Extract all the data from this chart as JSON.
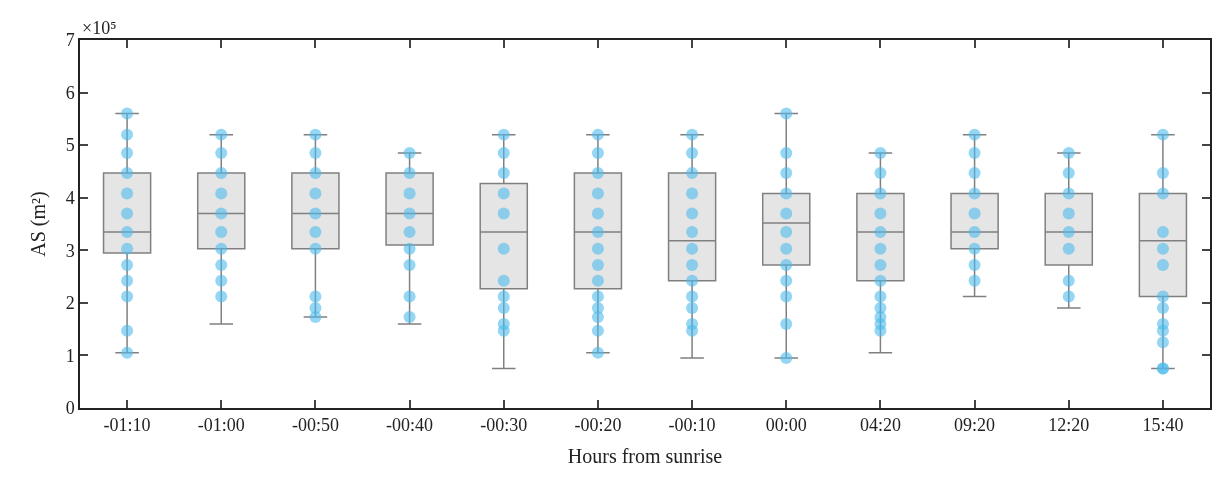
{
  "chart_data": {
    "type": "box",
    "xlabel": "Hours from sunrise",
    "ylabel": "AS (m²)",
    "categories": [
      "-01:10",
      "-01:00",
      "-00:50",
      "-00:40",
      "-00:30",
      "-00:20",
      "-00:10",
      "00:00",
      "04:20",
      "09:20",
      "12:20",
      "15:40"
    ],
    "ylim": [
      0,
      7
    ],
    "yticks": [
      0,
      1,
      2,
      3,
      4,
      5,
      6,
      7
    ],
    "annotations": [
      "×10⁵"
    ],
    "series": [
      {
        "color": "#808080",
        "boxes": [
          {
            "low": 1.05,
            "q1": 2.95,
            "median": 3.35,
            "q3": 4.47,
            "high": 5.6
          },
          {
            "low": 1.6,
            "q1": 3.03,
            "median": 3.7,
            "q3": 4.47,
            "high": 5.2
          },
          {
            "low": 1.73,
            "q1": 3.03,
            "median": 3.7,
            "q3": 4.47,
            "high": 5.2
          },
          {
            "low": 1.6,
            "q1": 3.1,
            "median": 3.7,
            "q3": 4.47,
            "high": 4.85
          },
          {
            "low": 0.75,
            "q1": 2.27,
            "median": 3.35,
            "q3": 4.27,
            "high": 5.2
          },
          {
            "low": 1.05,
            "q1": 2.27,
            "median": 3.35,
            "q3": 4.47,
            "high": 5.2
          },
          {
            "low": 0.95,
            "q1": 2.42,
            "median": 3.18,
            "q3": 4.47,
            "high": 5.2
          },
          {
            "low": 0.95,
            "q1": 2.72,
            "median": 3.52,
            "q3": 4.08,
            "high": 5.6
          },
          {
            "low": 1.05,
            "q1": 2.42,
            "median": 3.35,
            "q3": 4.08,
            "high": 4.85
          },
          {
            "low": 2.12,
            "q1": 3.03,
            "median": 3.35,
            "q3": 4.08,
            "high": 5.2
          },
          {
            "low": 1.9,
            "q1": 2.72,
            "median": 3.35,
            "q3": 4.08,
            "high": 4.85
          },
          {
            "low": 0.75,
            "q1": 2.12,
            "median": 3.18,
            "q3": 4.08,
            "high": 5.2
          }
        ]
      },
      {
        "type": "scatter",
        "color": "#4dbbeb",
        "marker": "circle",
        "x": [
          "-01:10",
          "-01:10",
          "-01:10",
          "-01:10",
          "-01:10",
          "-01:10",
          "-01:10",
          "-01:10",
          "-01:10",
          "-01:10",
          "-01:10",
          "-01:10",
          "-01:10",
          "-01:00",
          "-01:00",
          "-01:00",
          "-01:00",
          "-01:00",
          "-01:00",
          "-01:00",
          "-01:00",
          "-01:00",
          "-01:00",
          "-00:50",
          "-00:50",
          "-00:50",
          "-00:50",
          "-00:50",
          "-00:50",
          "-00:50",
          "-00:50",
          "-00:50",
          "-00:50",
          "-00:40",
          "-00:40",
          "-00:40",
          "-00:40",
          "-00:40",
          "-00:40",
          "-00:40",
          "-00:40",
          "-00:40",
          "-00:30",
          "-00:30",
          "-00:30",
          "-00:30",
          "-00:30",
          "-00:30",
          "-00:30",
          "-00:30",
          "-00:30",
          "-00:30",
          "-00:30",
          "-00:20",
          "-00:20",
          "-00:20",
          "-00:20",
          "-00:20",
          "-00:20",
          "-00:20",
          "-00:20",
          "-00:20",
          "-00:20",
          "-00:20",
          "-00:20",
          "-00:20",
          "-00:20",
          "-00:10",
          "-00:10",
          "-00:10",
          "-00:10",
          "-00:10",
          "-00:10",
          "-00:10",
          "-00:10",
          "-00:10",
          "-00:10",
          "-00:10",
          "-00:10",
          "-00:10",
          "00:00",
          "00:00",
          "00:00",
          "00:00",
          "00:00",
          "00:00",
          "00:00",
          "00:00",
          "00:00",
          "00:00",
          "00:00",
          "00:00",
          "04:20",
          "04:20",
          "04:20",
          "04:20",
          "04:20",
          "04:20",
          "04:20",
          "04:20",
          "04:20",
          "04:20",
          "04:20",
          "04:20",
          "04:20",
          "09:20",
          "09:20",
          "09:20",
          "09:20",
          "09:20",
          "09:20",
          "09:20",
          "09:20",
          "09:20",
          "12:20",
          "12:20",
          "12:20",
          "12:20",
          "12:20",
          "12:20",
          "12:20",
          "12:20",
          "15:40",
          "15:40",
          "15:40",
          "15:40",
          "15:40",
          "15:40",
          "15:40",
          "15:40",
          "15:40",
          "15:40",
          "15:40",
          "15:40",
          "15:40"
        ],
        "values": [
          5.6,
          5.2,
          4.85,
          4.47,
          4.08,
          3.7,
          3.35,
          3.03,
          2.72,
          2.42,
          2.12,
          1.47,
          1.05,
          5.2,
          4.85,
          4.47,
          4.08,
          3.7,
          3.35,
          3.03,
          2.72,
          2.42,
          2.12,
          5.2,
          4.85,
          4.47,
          4.08,
          3.7,
          3.35,
          3.03,
          2.12,
          1.9,
          1.73,
          4.85,
          4.47,
          4.08,
          3.7,
          3.35,
          3.03,
          2.72,
          2.12,
          1.73,
          5.2,
          4.85,
          4.47,
          4.08,
          3.7,
          3.03,
          2.42,
          2.12,
          1.9,
          1.6,
          1.47,
          5.2,
          4.85,
          4.47,
          4.08,
          3.7,
          3.35,
          3.03,
          2.72,
          2.42,
          2.12,
          1.9,
          1.73,
          1.47,
          1.05,
          5.2,
          4.85,
          4.47,
          4.08,
          3.7,
          3.35,
          3.03,
          2.72,
          2.42,
          2.12,
          1.9,
          1.6,
          1.47,
          5.6,
          4.85,
          4.47,
          4.08,
          3.7,
          3.35,
          3.03,
          2.72,
          2.42,
          2.12,
          1.6,
          0.95,
          4.85,
          4.47,
          4.08,
          3.7,
          3.35,
          3.03,
          2.72,
          2.42,
          2.12,
          1.9,
          1.73,
          1.6,
          1.47,
          5.2,
          4.85,
          4.47,
          4.08,
          3.7,
          3.35,
          3.03,
          2.72,
          2.42,
          4.85,
          4.47,
          4.08,
          3.7,
          3.35,
          3.03,
          2.42,
          2.12,
          5.2,
          4.47,
          4.08,
          3.35,
          3.03,
          2.72,
          2.12,
          1.9,
          1.6,
          1.47,
          1.25,
          0.75,
          0.75
        ]
      }
    ]
  }
}
